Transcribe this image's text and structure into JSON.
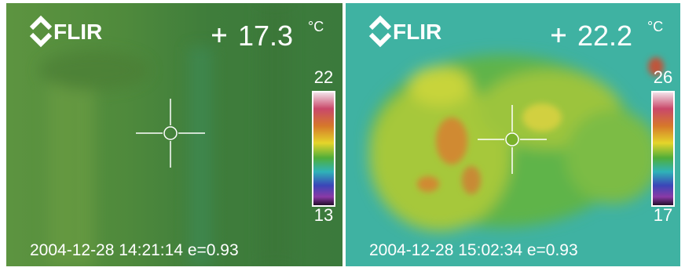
{
  "panels": [
    {
      "brand": "FLIR",
      "temperature": "17.3",
      "unit": "°C",
      "scale_max": "22",
      "scale_min": "13",
      "timestamp": "2004-12-28 14:21:14 e=0.93"
    },
    {
      "brand": "FLIR",
      "temperature": "22.2",
      "unit": "°C",
      "scale_max": "26",
      "scale_min": "17",
      "timestamp": "2004-12-28 15:02:34 e=0.93"
    }
  ]
}
